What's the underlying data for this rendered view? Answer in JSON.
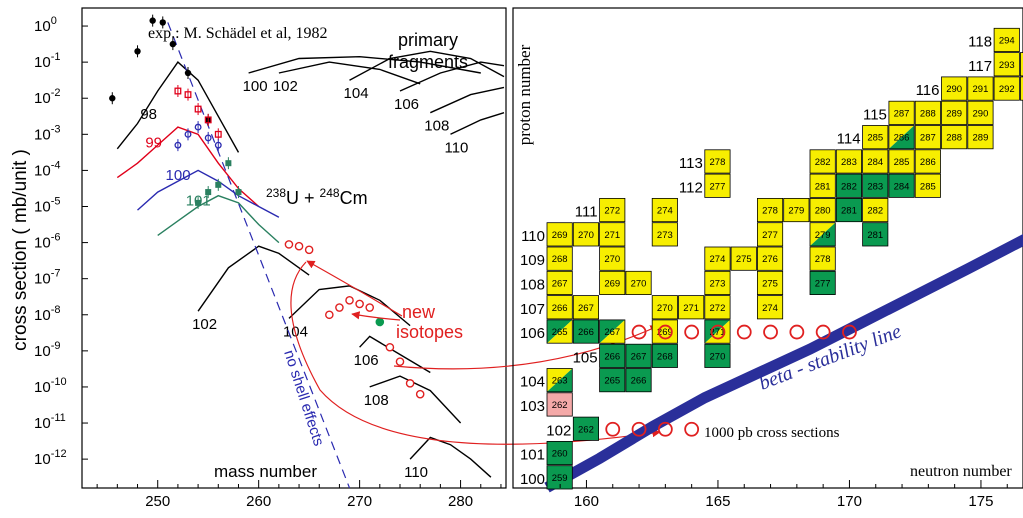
{
  "colors": {
    "data_black": "#000000",
    "data_red": "#e0001a",
    "data_blue": "#2a2ab0",
    "data_green": "#2a8060",
    "cell_yellow": "#f7ee00",
    "cell_green": "#0a9a50",
    "cell_pink": "#f4a9a8",
    "beta_line": "#2a2f9a",
    "new_red": "#e02020"
  },
  "left_panel": {
    "ylabel": "cross section  ( mb/unit )",
    "xlabel": "mass number",
    "reaction": {
      "a_mass": "238",
      "a_sym": "U",
      "plus": " + ",
      "b_mass": "248",
      "b_sym": "Cm"
    },
    "exp_note": "exp.: M. Schädel et al, 1982",
    "primary_label": [
      "primary",
      "fragments"
    ],
    "no_shell_label": "no shell effects",
    "new_isotopes_label": [
      "new",
      "isotopes"
    ],
    "y_ticks": [
      {
        "base": "10",
        "exp": "0",
        "v": 0
      },
      {
        "base": "10",
        "exp": "-1",
        "v": -1
      },
      {
        "base": "10",
        "exp": "-2",
        "v": -2
      },
      {
        "base": "10",
        "exp": "-3",
        "v": -3
      },
      {
        "base": "10",
        "exp": "-4",
        "v": -4
      },
      {
        "base": "10",
        "exp": "-5",
        "v": -5
      },
      {
        "base": "10",
        "exp": "-6",
        "v": -6
      },
      {
        "base": "10",
        "exp": "-7",
        "v": -7
      },
      {
        "base": "10",
        "exp": "-8",
        "v": -8
      },
      {
        "base": "10",
        "exp": "-9",
        "v": -9
      },
      {
        "base": "10",
        "exp": "-10",
        "v": -10
      },
      {
        "base": "10",
        "exp": "-11",
        "v": -11
      },
      {
        "base": "10",
        "exp": "-12",
        "v": -12
      }
    ],
    "x_ticks": [
      "250",
      "260",
      "270",
      "280"
    ]
  },
  "chart_data": [
    {
      "type": "line",
      "scale": "log-y",
      "xlabel": "mass number",
      "ylabel": "cross section  ( mb/unit )",
      "xlim": [
        242.5,
        284.5
      ],
      "ylim_log10": [
        -12.8,
        0.5
      ],
      "x_ticks": [
        250,
        260,
        270,
        280
      ],
      "calc_curves": [
        {
          "label": "98",
          "x": [
            246,
            248,
            250,
            252,
            254,
            256,
            258
          ],
          "log_y": [
            -3.4,
            -2.7,
            -1.8,
            -1.0,
            -1.5,
            -2.5,
            -3.5
          ]
        },
        {
          "label": "99",
          "x": [
            246,
            248,
            250,
            252,
            254,
            256,
            258,
            260
          ],
          "log_y": [
            -4.2,
            -3.8,
            -3.3,
            -2.8,
            -3.0,
            -3.8,
            -4.5,
            -5.0
          ]
        },
        {
          "label": "100",
          "x": [
            248,
            250,
            252,
            254,
            256,
            258,
            260,
            262
          ],
          "log_y": [
            -5.1,
            -4.6,
            -4.3,
            -4.0,
            -4.3,
            -4.7,
            -5.0,
            -5.3
          ]
        },
        {
          "label": "101",
          "x": [
            250,
            252,
            254,
            256,
            258,
            260,
            262
          ],
          "log_y": [
            -5.8,
            -5.4,
            -5.0,
            -4.7,
            -4.9,
            -5.5,
            -6.0
          ]
        },
        {
          "label": "100",
          "x": [
            259,
            264,
            270,
            276,
            282
          ],
          "log_y": [
            -1.3,
            -0.9,
            -0.85,
            -1.0,
            -1.3
          ]
        },
        {
          "label": "102",
          "x": [
            262,
            267,
            272,
            276
          ],
          "log_y": [
            -1.3,
            -1.0,
            -1.2,
            -1.6
          ]
        },
        {
          "label": "104",
          "x": [
            269,
            273,
            277,
            281,
            285
          ],
          "log_y": [
            -1.5,
            -0.9,
            -0.7,
            -0.9,
            -1.4
          ]
        },
        {
          "label": "106",
          "x": [
            274,
            278,
            282,
            285
          ],
          "log_y": [
            -1.8,
            -1.3,
            -1.0,
            -1.1
          ]
        },
        {
          "label": "108",
          "x": [
            277,
            281,
            285
          ],
          "log_y": [
            -2.4,
            -1.9,
            -1.7
          ]
        },
        {
          "label": "110",
          "x": [
            279,
            282,
            285
          ],
          "log_y": [
            -3.0,
            -2.6,
            -2.4
          ]
        },
        {
          "label": "102",
          "x": [
            254,
            257,
            260,
            262,
            265
          ],
          "log_y": [
            -7.9,
            -6.7,
            -6.1,
            -6.3,
            -6.9
          ]
        },
        {
          "label": "104",
          "x": [
            263,
            266,
            269,
            272,
            275
          ],
          "log_y": [
            -8.1,
            -7.3,
            -7.2,
            -7.6,
            -8.3
          ]
        },
        {
          "label": "106",
          "x": [
            270,
            271,
            274,
            277
          ],
          "log_y": [
            -8.9,
            -8.6,
            -9.1,
            -9.6
          ]
        },
        {
          "label": "108",
          "x": [
            271,
            274,
            277,
            280
          ],
          "log_y": [
            -10.0,
            -9.7,
            -10.1,
            -11.0
          ]
        },
        {
          "label": "110",
          "x": [
            275,
            277,
            279,
            281,
            283
          ],
          "log_y": [
            -12.0,
            -11.4,
            -11.6,
            -12.0,
            -12.5
          ]
        }
      ],
      "exp_series": [
        {
          "name": "98",
          "x": [
            245.5,
            248,
            249.5,
            250.5,
            251.5,
            253,
            255
          ],
          "log_y": [
            -2.0,
            -0.7,
            0.15,
            0.1,
            -0.5,
            -1.3,
            -2.6
          ]
        },
        {
          "name": "99",
          "x": [
            252,
            253,
            254,
            255,
            256
          ],
          "log_y": [
            -1.8,
            -1.9,
            -2.3,
            -2.6,
            -3.0
          ]
        },
        {
          "name": "100",
          "x": [
            252,
            253,
            254,
            255,
            256
          ],
          "log_y": [
            -3.3,
            -3.0,
            -2.8,
            -3.1,
            -3.3
          ]
        },
        {
          "name": "101",
          "x": [
            254,
            255,
            256,
            257,
            258
          ],
          "log_y": [
            -4.9,
            -4.6,
            -4.4,
            -3.8,
            -4.6
          ]
        }
      ],
      "new_isotope_points": {
        "x": [
          263,
          264,
          265,
          267,
          268,
          269,
          270,
          271,
          272,
          273,
          274,
          275,
          276
        ],
        "log_y": [
          -6.05,
          -6.1,
          -6.2,
          -8.0,
          -7.8,
          -7.6,
          -7.7,
          -7.8,
          -8.2,
          -8.9,
          -9.3,
          -9.9,
          -10.2
        ],
        "filled_index": [
          8
        ]
      },
      "no_shell_line": {
        "x": [
          251,
          269
        ],
        "log_y": [
          0.1,
          -12.8
        ]
      }
    },
    {
      "type": "heatmap",
      "subtype": "chart-of-nuclides",
      "xlabel": "neutron  number",
      "ylabel": "proton  number",
      "xlim": [
        158.5,
        177.5
      ],
      "ylim": [
        99.5,
        118.5
      ],
      "x_ticks": [
        160,
        165,
        170,
        175
      ],
      "row_labels": [
        {
          "z": 100,
          "text": "100"
        },
        {
          "z": 101,
          "text": "101"
        },
        {
          "z": 102,
          "text": "102"
        },
        {
          "z": 103,
          "text": "103"
        },
        {
          "z": 104,
          "text": "104"
        },
        {
          "z": 105,
          "text": "105"
        },
        {
          "z": 106,
          "text": "106"
        },
        {
          "z": 107,
          "text": "107"
        },
        {
          "z": 108,
          "text": "108"
        },
        {
          "z": 109,
          "text": "109"
        },
        {
          "z": 110,
          "text": "110"
        },
        {
          "z": 111,
          "text": "111"
        },
        {
          "z": 112,
          "text": "112"
        },
        {
          "z": 113,
          "text": "113"
        },
        {
          "z": 114,
          "text": "114"
        },
        {
          "z": 115,
          "text": "115"
        },
        {
          "z": 116,
          "text": "116"
        },
        {
          "z": 117,
          "text": "117"
        },
        {
          "z": 118,
          "text": "118"
        }
      ],
      "cells": [
        {
          "z": 100,
          "n": 159,
          "a": "259",
          "t": "g"
        },
        {
          "z": 101,
          "n": 159,
          "a": "260",
          "t": "g"
        },
        {
          "z": 102,
          "n": 160,
          "a": "262",
          "t": "g"
        },
        {
          "z": 103,
          "n": 159,
          "a": "262",
          "t": "p"
        },
        {
          "z": 104,
          "n": 159,
          "a": "263",
          "t": "yg"
        },
        {
          "z": 104,
          "n": 161,
          "a": "265",
          "t": "g"
        },
        {
          "z": 104,
          "n": 162,
          "a": "266",
          "t": "g"
        },
        {
          "z": 105,
          "n": 161,
          "a": "266",
          "t": "g"
        },
        {
          "z": 105,
          "n": 162,
          "a": "267",
          "t": "g"
        },
        {
          "z": 105,
          "n": 163,
          "a": "268",
          "t": "g"
        },
        {
          "z": 105,
          "n": 165,
          "a": "270",
          "t": "g"
        },
        {
          "z": 106,
          "n": 159,
          "a": "265",
          "t": "gy"
        },
        {
          "z": 106,
          "n": 160,
          "a": "266",
          "t": "g"
        },
        {
          "z": 106,
          "n": 161,
          "a": "267",
          "t": "gy"
        },
        {
          "z": 106,
          "n": 163,
          "a": "269",
          "t": "y"
        },
        {
          "z": 106,
          "n": 165,
          "a": "271",
          "t": "gy"
        },
        {
          "z": 107,
          "n": 159,
          "a": "266",
          "t": "y"
        },
        {
          "z": 107,
          "n": 160,
          "a": "267",
          "t": "y"
        },
        {
          "z": 107,
          "n": 163,
          "a": "270",
          "t": "y"
        },
        {
          "z": 107,
          "n": 164,
          "a": "271",
          "t": "y"
        },
        {
          "z": 107,
          "n": 165,
          "a": "272",
          "t": "y"
        },
        {
          "z": 107,
          "n": 167,
          "a": "274",
          "t": "y"
        },
        {
          "z": 108,
          "n": 159,
          "a": "267",
          "t": "y"
        },
        {
          "z": 108,
          "n": 161,
          "a": "269",
          "t": "y"
        },
        {
          "z": 108,
          "n": 162,
          "a": "270",
          "t": "y"
        },
        {
          "z": 108,
          "n": 165,
          "a": "273",
          "t": "y"
        },
        {
          "z": 108,
          "n": 167,
          "a": "275",
          "t": "y"
        },
        {
          "z": 108,
          "n": 169,
          "a": "277",
          "t": "g"
        },
        {
          "z": 109,
          "n": 159,
          "a": "268",
          "t": "y"
        },
        {
          "z": 109,
          "n": 161,
          "a": "270",
          "t": "y"
        },
        {
          "z": 109,
          "n": 165,
          "a": "274",
          "t": "y"
        },
        {
          "z": 109,
          "n": 166,
          "a": "275",
          "t": "y"
        },
        {
          "z": 109,
          "n": 167,
          "a": "276",
          "t": "y"
        },
        {
          "z": 109,
          "n": 169,
          "a": "278",
          "t": "y"
        },
        {
          "z": 110,
          "n": 159,
          "a": "269",
          "t": "y"
        },
        {
          "z": 110,
          "n": 160,
          "a": "270",
          "t": "y"
        },
        {
          "z": 110,
          "n": 161,
          "a": "271",
          "t": "y"
        },
        {
          "z": 110,
          "n": 163,
          "a": "273",
          "t": "y"
        },
        {
          "z": 110,
          "n": 167,
          "a": "277",
          "t": "y"
        },
        {
          "z": 110,
          "n": 169,
          "a": "279",
          "t": "yg"
        },
        {
          "z": 110,
          "n": 171,
          "a": "281",
          "t": "g"
        },
        {
          "z": 111,
          "n": 161,
          "a": "272",
          "t": "y"
        },
        {
          "z": 111,
          "n": 163,
          "a": "274",
          "t": "y"
        },
        {
          "z": 111,
          "n": 167,
          "a": "278",
          "t": "y"
        },
        {
          "z": 111,
          "n": 168,
          "a": "279",
          "t": "y"
        },
        {
          "z": 111,
          "n": 169,
          "a": "280",
          "t": "y"
        },
        {
          "z": 111,
          "n": 170,
          "a": "281",
          "t": "g"
        },
        {
          "z": 111,
          "n": 171,
          "a": "282",
          "t": "y"
        },
        {
          "z": 112,
          "n": 165,
          "a": "277",
          "t": "y"
        },
        {
          "z": 112,
          "n": 169,
          "a": "281",
          "t": "y"
        },
        {
          "z": 112,
          "n": 170,
          "a": "282",
          "t": "g"
        },
        {
          "z": 112,
          "n": 171,
          "a": "283",
          "t": "g"
        },
        {
          "z": 112,
          "n": 172,
          "a": "284",
          "t": "g"
        },
        {
          "z": 112,
          "n": 173,
          "a": "285",
          "t": "y"
        },
        {
          "z": 113,
          "n": 165,
          "a": "278",
          "t": "y"
        },
        {
          "z": 113,
          "n": 169,
          "a": "282",
          "t": "y"
        },
        {
          "z": 113,
          "n": 170,
          "a": "283",
          "t": "y"
        },
        {
          "z": 113,
          "n": 171,
          "a": "284",
          "t": "y"
        },
        {
          "z": 113,
          "n": 172,
          "a": "285",
          "t": "y"
        },
        {
          "z": 113,
          "n": 173,
          "a": "286",
          "t": "y"
        },
        {
          "z": 114,
          "n": 171,
          "a": "285",
          "t": "y"
        },
        {
          "z": 114,
          "n": 172,
          "a": "286",
          "t": "yg"
        },
        {
          "z": 114,
          "n": 173,
          "a": "287",
          "t": "y"
        },
        {
          "z": 114,
          "n": 174,
          "a": "288",
          "t": "y"
        },
        {
          "z": 114,
          "n": 175,
          "a": "289",
          "t": "y"
        },
        {
          "z": 115,
          "n": 172,
          "a": "287",
          "t": "y"
        },
        {
          "z": 115,
          "n": 173,
          "a": "288",
          "t": "y"
        },
        {
          "z": 115,
          "n": 174,
          "a": "289",
          "t": "y"
        },
        {
          "z": 115,
          "n": 175,
          "a": "290",
          "t": "y"
        },
        {
          "z": 116,
          "n": 174,
          "a": "290",
          "t": "y"
        },
        {
          "z": 116,
          "n": 175,
          "a": "291",
          "t": "y"
        },
        {
          "z": 116,
          "n": 176,
          "a": "292",
          "t": "y"
        },
        {
          "z": 116,
          "n": 177,
          "a": "293",
          "t": "y"
        },
        {
          "z": 117,
          "n": 176,
          "a": "293",
          "t": "y"
        },
        {
          "z": 117,
          "n": 177,
          "a": "294",
          "t": "y"
        },
        {
          "z": 118,
          "n": 176,
          "a": "294",
          "t": "y"
        }
      ],
      "new_isotope_circles": [
        {
          "z": 106,
          "n": 162
        },
        {
          "z": 106,
          "n": 163
        },
        {
          "z": 106,
          "n": 164
        },
        {
          "z": 106,
          "n": 165
        },
        {
          "z": 106,
          "n": 166
        },
        {
          "z": 106,
          "n": 167
        },
        {
          "z": 106,
          "n": 168
        },
        {
          "z": 106,
          "n": 169
        },
        {
          "z": 106,
          "n": 170
        },
        {
          "z": 102,
          "n": 161
        },
        {
          "z": 102,
          "n": 162
        },
        {
          "z": 102,
          "n": 163
        },
        {
          "z": 102,
          "n": 164
        }
      ],
      "beta_stability_line": {
        "n": [
          159.0,
          161,
          163,
          165,
          167,
          169,
          171,
          173,
          175,
          177.5
        ],
        "z": [
          99.6,
          100.8,
          102.1,
          103.3,
          104.3,
          105.3,
          106.4,
          107.5,
          108.6,
          110.0
        ]
      },
      "annotations": {
        "beta_label": "beta - stability  line",
        "pb_label": "1000 pb cross sections"
      }
    }
  ]
}
